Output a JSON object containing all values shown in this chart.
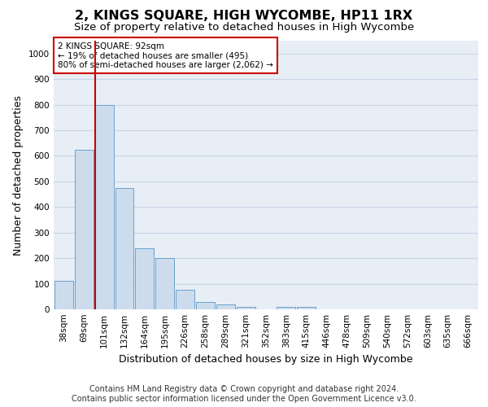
{
  "title": "2, KINGS SQUARE, HIGH WYCOMBE, HP11 1RX",
  "subtitle": "Size of property relative to detached houses in High Wycombe",
  "xlabel": "Distribution of detached houses by size in High Wycombe",
  "ylabel": "Number of detached properties",
  "categories": [
    "38sqm",
    "69sqm",
    "101sqm",
    "132sqm",
    "164sqm",
    "195sqm",
    "226sqm",
    "258sqm",
    "289sqm",
    "321sqm",
    "352sqm",
    "383sqm",
    "415sqm",
    "446sqm",
    "478sqm",
    "509sqm",
    "540sqm",
    "572sqm",
    "603sqm",
    "635sqm",
    "666sqm"
  ],
  "values": [
    110,
    625,
    800,
    475,
    240,
    200,
    75,
    30,
    20,
    10,
    0,
    10,
    10,
    0,
    0,
    0,
    0,
    0,
    0,
    0,
    0
  ],
  "bar_color": "#cddcec",
  "bar_edge_color": "#6aa0cc",
  "marker_line_color": "#cc0000",
  "annotation_line1": "2 KINGS SQUARE: 92sqm",
  "annotation_line2": "← 19% of detached houses are smaller (495)",
  "annotation_line3": "80% of semi-detached houses are larger (2,062) →",
  "annotation_box_color": "#ffffff",
  "annotation_box_edge": "#cc0000",
  "footer_line1": "Contains HM Land Registry data © Crown copyright and database right 2024.",
  "footer_line2": "Contains public sector information licensed under the Open Government Licence v3.0.",
  "ylim": [
    0,
    1050
  ],
  "yticks": [
    0,
    100,
    200,
    300,
    400,
    500,
    600,
    700,
    800,
    900,
    1000
  ],
  "grid_color": "#c8d4e8",
  "bg_color": "#e8eef6",
  "title_fontsize": 11.5,
  "subtitle_fontsize": 9.5,
  "axis_label_fontsize": 9,
  "tick_fontsize": 7.5,
  "footer_fontsize": 7
}
